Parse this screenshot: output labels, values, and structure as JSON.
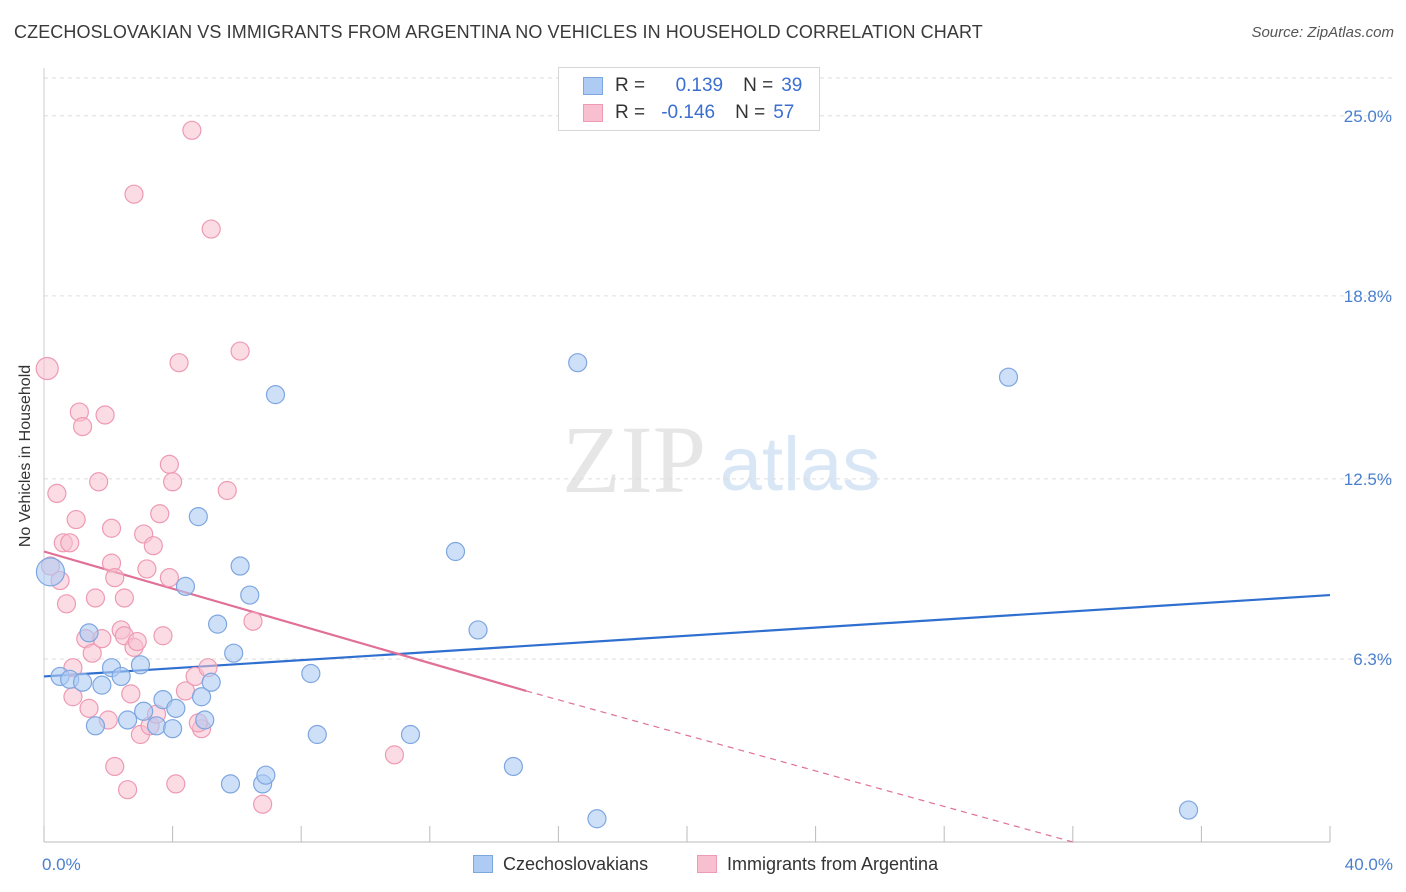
{
  "title": "CZECHOSLOVAKIAN VS IMMIGRANTS FROM ARGENTINA NO VEHICLES IN HOUSEHOLD CORRELATION CHART",
  "source": "Source: ZipAtlas.com",
  "watermark": {
    "zip": "ZIP",
    "atlas": "atlas"
  },
  "legend_top": {
    "rows": [
      {
        "r_label": "R =",
        "r_value": "0.139",
        "n_label": "N =",
        "n_value": "39"
      },
      {
        "r_label": "R =",
        "r_value": "-0.146",
        "n_label": "N =",
        "n_value": "57"
      }
    ]
  },
  "legend_bottom": {
    "series1": "Czechoslovakians",
    "series2": "Immigrants from Argentina"
  },
  "colors": {
    "blue_fill": "#aecbf3",
    "blue_stroke": "#7ea6e0",
    "blue_line": "#2f6fcf",
    "pink_fill": "#f8bfd0",
    "pink_stroke": "#ee9ab3",
    "pink_line": "#e07097",
    "tick": "#4a7fcf",
    "grid": "#dddddd"
  },
  "chart_data": {
    "type": "scatter",
    "title": "CZECHOSLOVAKIAN VS IMMIGRANTS FROM ARGENTINA NO VEHICLES IN HOUSEHOLD CORRELATION CHART",
    "xlabel": "",
    "ylabel": "No Vehicles in Household",
    "xlim": [
      0,
      40
    ],
    "ylim": [
      0,
      26.3
    ],
    "x_tick_labels": [
      "0.0%",
      "40.0%"
    ],
    "y_ticks": [
      6.3,
      12.5,
      18.8,
      25.0
    ],
    "y_tick_labels": [
      "6.3%",
      "12.5%",
      "18.8%",
      "25.0%"
    ],
    "series": [
      {
        "name": "Czechoslovakians",
        "r": 0.139,
        "n": 39,
        "trend": {
          "x0": 0,
          "y0": 5.7,
          "x1": 40,
          "y1": 8.5
        },
        "points": [
          [
            0.2,
            9.3
          ],
          [
            0.5,
            5.7
          ],
          [
            0.8,
            5.6
          ],
          [
            1.2,
            5.5
          ],
          [
            1.4,
            7.2
          ],
          [
            1.6,
            4.0
          ],
          [
            1.8,
            5.4
          ],
          [
            2.1,
            6.0
          ],
          [
            2.4,
            5.7
          ],
          [
            2.6,
            4.2
          ],
          [
            3.0,
            6.1
          ],
          [
            3.1,
            4.5
          ],
          [
            3.5,
            4.0
          ],
          [
            3.7,
            4.9
          ],
          [
            4.0,
            3.9
          ],
          [
            4.1,
            4.6
          ],
          [
            4.4,
            8.8
          ],
          [
            4.8,
            11.2
          ],
          [
            4.9,
            5.0
          ],
          [
            5.2,
            5.5
          ],
          [
            5.4,
            7.5
          ],
          [
            5.8,
            2.0
          ],
          [
            5.9,
            6.5
          ],
          [
            6.1,
            9.5
          ],
          [
            6.4,
            8.5
          ],
          [
            6.8,
            2.0
          ],
          [
            6.9,
            2.3
          ],
          [
            7.2,
            15.4
          ],
          [
            8.3,
            5.8
          ],
          [
            8.5,
            3.7
          ],
          [
            11.4,
            3.7
          ],
          [
            12.8,
            10.0
          ],
          [
            13.5,
            7.3
          ],
          [
            14.6,
            2.6
          ],
          [
            16.6,
            16.5
          ],
          [
            17.2,
            0.8
          ],
          [
            30.0,
            16.0
          ],
          [
            35.6,
            1.1
          ],
          [
            5.0,
            4.2
          ]
        ]
      },
      {
        "name": "Immigrants from Argentina",
        "r": -0.146,
        "n": 57,
        "trend": {
          "x0": 0,
          "y0": 10.0,
          "x1": 15,
          "y1": 5.2
        },
        "trend_dashed": {
          "x0": 15,
          "y0": 5.2,
          "x1": 32,
          "y1": 0
        },
        "points": [
          [
            0.1,
            16.3
          ],
          [
            0.2,
            9.5
          ],
          [
            0.4,
            12.0
          ],
          [
            0.5,
            9.0
          ],
          [
            0.6,
            10.3
          ],
          [
            0.7,
            8.2
          ],
          [
            0.8,
            10.3
          ],
          [
            0.9,
            6.0
          ],
          [
            0.9,
            5.0
          ],
          [
            1.0,
            11.1
          ],
          [
            1.1,
            14.8
          ],
          [
            1.2,
            14.3
          ],
          [
            1.3,
            7.0
          ],
          [
            1.4,
            4.6
          ],
          [
            1.5,
            6.5
          ],
          [
            1.6,
            8.4
          ],
          [
            1.7,
            12.4
          ],
          [
            1.8,
            7.0
          ],
          [
            1.9,
            14.7
          ],
          [
            2.0,
            4.2
          ],
          [
            2.1,
            9.6
          ],
          [
            2.1,
            10.8
          ],
          [
            2.2,
            9.1
          ],
          [
            2.2,
            2.6
          ],
          [
            2.4,
            7.3
          ],
          [
            2.5,
            7.1
          ],
          [
            2.5,
            8.4
          ],
          [
            2.6,
            1.8
          ],
          [
            2.7,
            5.1
          ],
          [
            2.8,
            6.7
          ],
          [
            2.8,
            22.3
          ],
          [
            2.9,
            6.9
          ],
          [
            3.0,
            3.7
          ],
          [
            3.1,
            10.6
          ],
          [
            3.2,
            9.4
          ],
          [
            3.3,
            4.0
          ],
          [
            3.4,
            10.2
          ],
          [
            3.5,
            4.4
          ],
          [
            3.6,
            11.3
          ],
          [
            3.7,
            7.1
          ],
          [
            3.9,
            13.0
          ],
          [
            3.9,
            9.1
          ],
          [
            4.0,
            12.4
          ],
          [
            4.1,
            2.0
          ],
          [
            4.2,
            16.5
          ],
          [
            4.4,
            5.2
          ],
          [
            4.6,
            24.5
          ],
          [
            4.7,
            5.7
          ],
          [
            4.9,
            3.9
          ],
          [
            5.1,
            6.0
          ],
          [
            5.2,
            21.1
          ],
          [
            5.7,
            12.1
          ],
          [
            6.1,
            16.9
          ],
          [
            6.5,
            7.6
          ],
          [
            6.8,
            1.3
          ],
          [
            10.9,
            3.0
          ],
          [
            4.8,
            4.1
          ]
        ]
      }
    ],
    "legend_position": "top-center"
  }
}
